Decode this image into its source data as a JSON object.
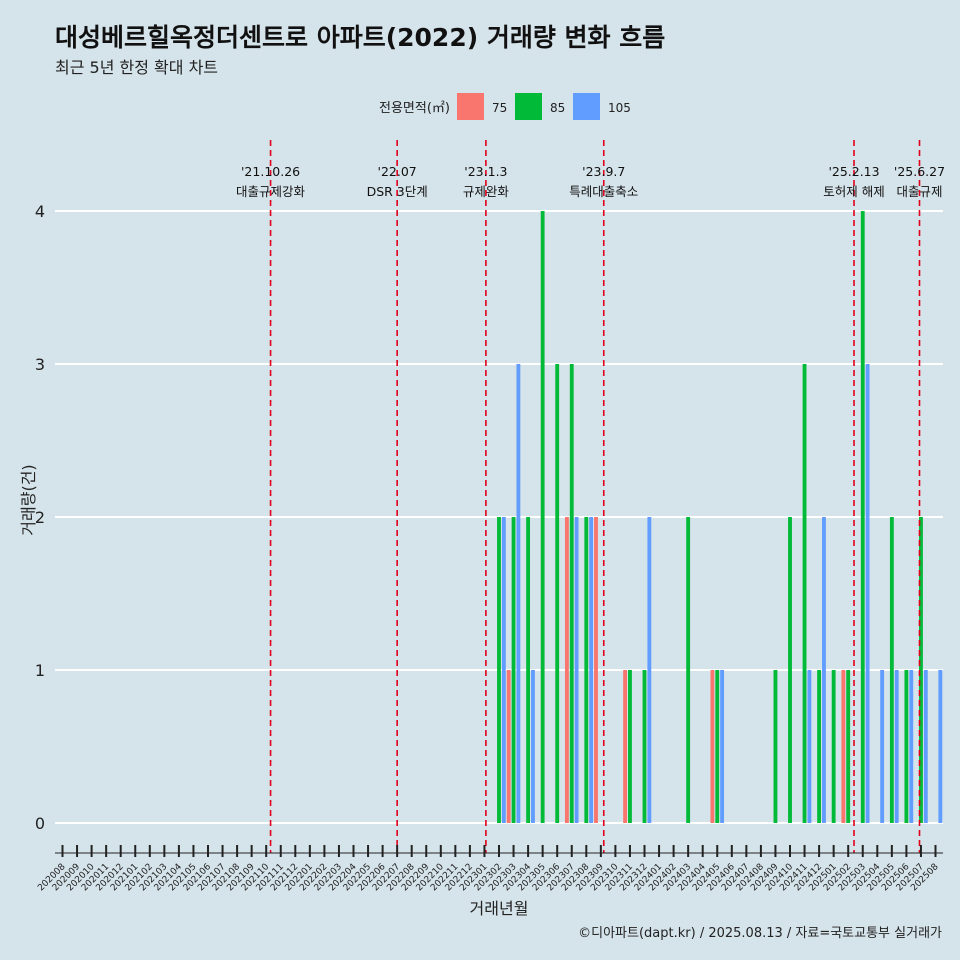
{
  "title": "대성베르힐옥정더센트로 아파트(2022) 거래량 변화 흐름",
  "subtitle": "최근 5년 한정 확대 차트",
  "caption": "©디아파트(dapt.kr) / 2025.08.13 / 자료=국토교통부 실거래가",
  "chart_data": {
    "type": "bar",
    "xlabel": "거래년월",
    "ylabel": "거래량(건)",
    "ylim": [
      0,
      4
    ],
    "yticks": [
      0,
      1,
      2,
      3,
      4
    ],
    "legend": {
      "title": "전용면적(㎡)",
      "position": "top",
      "entries": [
        {
          "name": "75",
          "color": "#F8766D"
        },
        {
          "name": "85",
          "color": "#00BA38"
        },
        {
          "name": "105",
          "color": "#619CFF"
        }
      ]
    },
    "categories": [
      "202008",
      "202009",
      "202010",
      "202011",
      "202012",
      "202101",
      "202102",
      "202103",
      "202104",
      "202105",
      "202106",
      "202107",
      "202108",
      "202109",
      "202110",
      "202111",
      "202112",
      "202201",
      "202202",
      "202203",
      "202204",
      "202205",
      "202206",
      "202207",
      "202208",
      "202209",
      "202210",
      "202211",
      "202212",
      "202301",
      "202302",
      "202303",
      "202304",
      "202305",
      "202306",
      "202307",
      "202308",
      "202309",
      "202310",
      "202311",
      "202312",
      "202401",
      "202402",
      "202403",
      "202404",
      "202405",
      "202406",
      "202407",
      "202408",
      "202409",
      "202410",
      "202411",
      "202412",
      "202501",
      "202502",
      "202503",
      "202504",
      "202505",
      "202506",
      "202507",
      "202508"
    ],
    "series": [
      {
        "name": "75",
        "color": "#F8766D",
        "values": [
          0,
          0,
          0,
          0,
          0,
          0,
          0,
          0,
          0,
          0,
          0,
          0,
          0,
          0,
          0,
          0,
          0,
          0,
          0,
          0,
          0,
          0,
          0,
          0,
          0,
          0,
          0,
          0,
          0,
          0,
          0,
          1,
          0,
          0,
          0,
          2,
          0,
          2,
          0,
          1,
          0,
          0,
          0,
          0,
          0,
          1,
          0,
          0,
          0,
          0,
          0,
          0,
          0,
          0,
          1,
          0,
          0,
          0,
          0,
          0,
          0
        ]
      },
      {
        "name": "85",
        "color": "#00BA38",
        "values": [
          0,
          0,
          0,
          0,
          0,
          0,
          0,
          0,
          0,
          0,
          0,
          0,
          0,
          0,
          0,
          0,
          0,
          0,
          0,
          0,
          0,
          0,
          0,
          0,
          0,
          0,
          0,
          0,
          0,
          0,
          2,
          2,
          2,
          4,
          3,
          3,
          2,
          0,
          0,
          1,
          1,
          0,
          0,
          2,
          0,
          1,
          0,
          0,
          0,
          1,
          2,
          3,
          1,
          1,
          1,
          4,
          0,
          2,
          1,
          2,
          0
        ]
      },
      {
        "name": "105",
        "color": "#619CFF",
        "values": [
          0,
          0,
          0,
          0,
          0,
          0,
          0,
          0,
          0,
          0,
          0,
          0,
          0,
          0,
          0,
          0,
          0,
          0,
          0,
          0,
          0,
          0,
          0,
          0,
          0,
          0,
          0,
          0,
          0,
          0,
          2,
          3,
          1,
          0,
          0,
          2,
          2,
          0,
          0,
          0,
          2,
          0,
          0,
          0,
          0,
          1,
          0,
          0,
          0,
          0,
          0,
          1,
          2,
          0,
          0,
          3,
          1,
          1,
          1,
          1,
          1
        ]
      }
    ],
    "events": [
      {
        "date": "'21.10.26",
        "label": "대출규제강화",
        "at": 14.3
      },
      {
        "date": "'22.07",
        "label": "DSR 3단계",
        "at": 23.0
      },
      {
        "date": "'23.1.3",
        "label": "규제완화",
        "at": 29.1
      },
      {
        "date": "'23.9.7",
        "label": "특례대출축소",
        "at": 37.2
      },
      {
        "date": "'25.2.13",
        "label": "토허제 해제",
        "at": 54.4
      },
      {
        "date": "'25.6.27",
        "label": "대출규제",
        "at": 58.9
      }
    ]
  }
}
